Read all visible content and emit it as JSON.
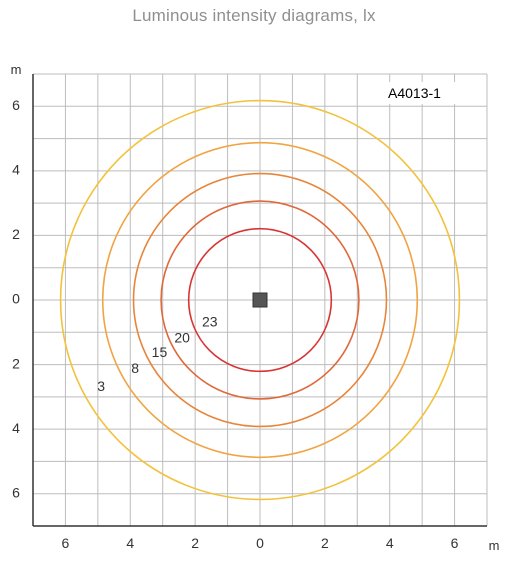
{
  "title": "Luminous intensity diagrams, lx",
  "code_label": "A4013-1",
  "chart_data": {
    "type": "contour",
    "title": "Luminous intensity diagrams, lx",
    "x_unit": "m",
    "y_unit": "m",
    "xlim": [
      -7,
      7
    ],
    "ylim": [
      -7,
      7
    ],
    "x_ticks": [
      {
        "value": -6,
        "label": "6"
      },
      {
        "value": -4,
        "label": "4"
      },
      {
        "value": -2,
        "label": "2"
      },
      {
        "value": 0,
        "label": "0"
      },
      {
        "value": 2,
        "label": "2"
      },
      {
        "value": 4,
        "label": "4"
      },
      {
        "value": 6,
        "label": "6"
      }
    ],
    "y_ticks": [
      {
        "value": 6,
        "label": "6"
      },
      {
        "value": 4,
        "label": "4"
      },
      {
        "value": 2,
        "label": "2"
      },
      {
        "value": 0,
        "label": "0"
      },
      {
        "value": -2,
        "label": "2"
      },
      {
        "value": -4,
        "label": "4"
      },
      {
        "value": -6,
        "label": "6"
      }
    ],
    "grid": true,
    "grid_step": 1,
    "source": {
      "x": 0,
      "y": 0,
      "color": "#555555"
    },
    "contours": [
      {
        "lx": 3,
        "label": "3",
        "radius": 6.15,
        "color": "#f2c23c"
      },
      {
        "lx": 8,
        "label": "8",
        "radius": 4.85,
        "color": "#f0a443"
      },
      {
        "lx": 15,
        "label": "15",
        "radius": 3.9,
        "color": "#e8853a"
      },
      {
        "lx": 20,
        "label": "20",
        "radius": 3.05,
        "color": "#e0683a"
      },
      {
        "lx": 23,
        "label": "23",
        "radius": 2.2,
        "color": "#d83434"
      }
    ],
    "contour_labels": [
      {
        "text": "3",
        "x": -4.9,
        "y": -2.7
      },
      {
        "text": "8",
        "x": -3.85,
        "y": -2.15
      },
      {
        "text": "15",
        "x": -3.1,
        "y": -1.65
      },
      {
        "text": "20",
        "x": -2.4,
        "y": -1.2
      },
      {
        "text": "23",
        "x": -1.55,
        "y": -0.7
      }
    ]
  }
}
